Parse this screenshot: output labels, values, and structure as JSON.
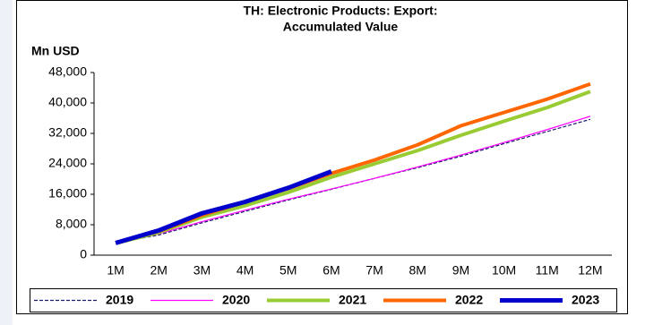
{
  "chart_data": {
    "type": "line",
    "title": [
      "TH: Electronic Products: Export:",
      "Accumulated Value"
    ],
    "y_label": "Mn USD",
    "categories": [
      "1M",
      "2M",
      "3M",
      "4M",
      "5M",
      "6M",
      "7M",
      "8M",
      "9M",
      "10M",
      "11M",
      "12M"
    ],
    "series": [
      {
        "name": "2019",
        "color": "#1a1a6e",
        "dashed": true,
        "width": 1.2,
        "values": [
          3200,
          5300,
          8500,
          11500,
          14500,
          17300,
          20200,
          23000,
          26000,
          29300,
          32500,
          35700
        ]
      },
      {
        "name": "2020",
        "color": "#ff00ff",
        "width": 1.2,
        "values": [
          3200,
          5600,
          8800,
          11800,
          14700,
          17400,
          20200,
          23200,
          26300,
          29600,
          33000,
          36500
        ]
      },
      {
        "name": "2021",
        "color": "#99cc33",
        "width": 4,
        "values": [
          3100,
          6000,
          10000,
          13000,
          16500,
          20500,
          24000,
          27500,
          31500,
          35200,
          38800,
          43000
        ]
      },
      {
        "name": "2022",
        "color": "#ff6600",
        "width": 4,
        "values": [
          3300,
          6300,
          10500,
          14000,
          17500,
          21500,
          25000,
          29000,
          34000,
          37500,
          41000,
          45000
        ]
      },
      {
        "name": "2023",
        "color": "#0000cc",
        "width": 5,
        "values": [
          3200,
          6500,
          11000,
          14000,
          17700,
          22000,
          null,
          null,
          null,
          null,
          null,
          null
        ]
      }
    ],
    "ylim": [
      0,
      48000
    ],
    "yticks": [
      0,
      {
        "value": 8000,
        "label": "8,000"
      },
      {
        "value": 16000,
        "label": "16,000"
      },
      {
        "value": 24000,
        "label": "24,000"
      },
      {
        "value": 32000,
        "label": "32,000"
      },
      {
        "value": 40000,
        "label": "40,000"
      },
      {
        "value": 48000,
        "label": "48,000"
      }
    ]
  }
}
